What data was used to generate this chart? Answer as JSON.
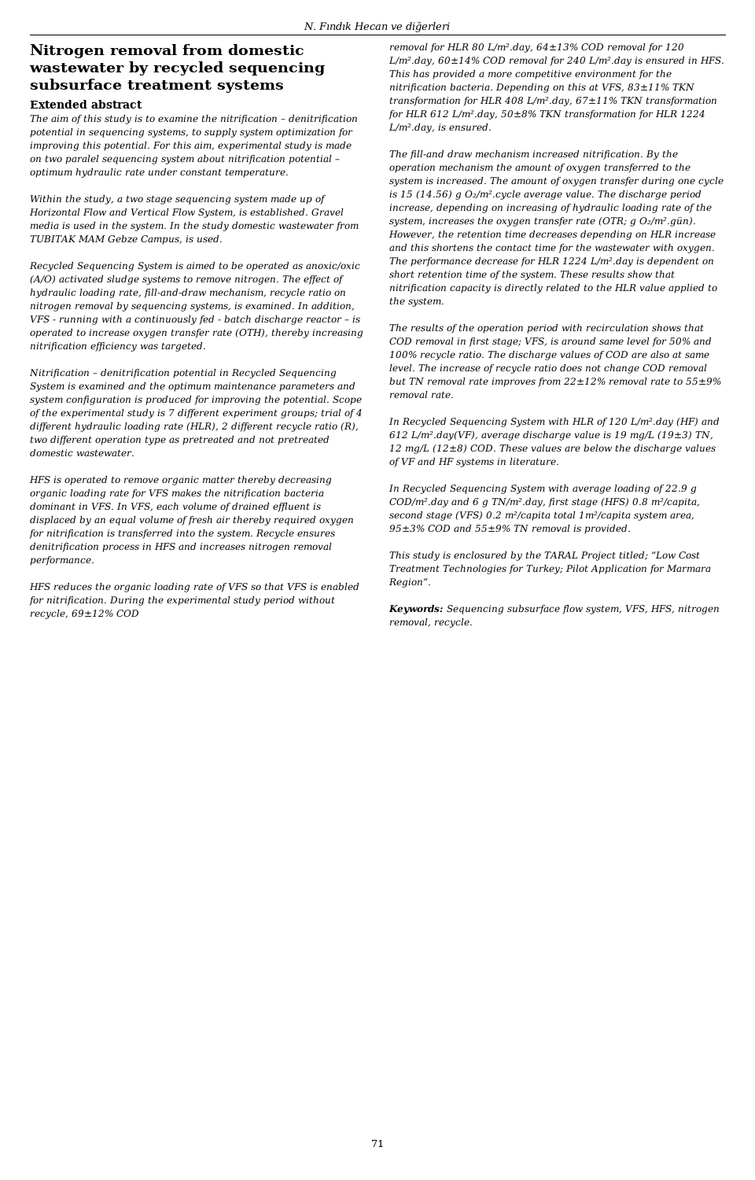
{
  "header": "N. Fındık Hecan ve diğerleri",
  "page_number": "71",
  "background_color": "#ffffff",
  "text_color": "#1a1a1a",
  "title_line1": "Nitrogen removal from domestic",
  "title_line2": "wastewater by recycled sequencing",
  "title_line3": "subsurface treatment systems",
  "section_header": "Extended abstract",
  "left_paragraphs": [
    "The aim of this study is to examine the nitrification – denitrification potential in sequencing systems, to supply system optimization for improving this potential. For this aim, experimental study is made on two paralel sequencing system about nitrification potential – optimum hydraulic rate under constant temperature.",
    "Within the study, a two stage sequencing system made up of Horizontal Flow and Vertical Flow System, is established. Gravel media is used in the system. In the study domestic wastewater from TUBITAK MAM Gebze Campus, is used.",
    "Recycled Sequencing System is aimed to be operated as anoxic/oxic (A/O) activated sludge systems to remove nitrogen. The effect of hydraulic loading rate, fill-and-draw mechanism, recycle ratio on nitrogen removal by sequencing systems, is examined. In addition, VFS - running with a continuously fed - batch discharge reactor – is operated to increase oxygen transfer rate (OTH), thereby increasing nitrification efficiency was targeted.",
    "Nitrification – denitrification potential in Recycled Sequencing System is examined and the optimum maintenance parameters and system configuration is produced for improving the potential. Scope of the experimental study is 7 different experiment groups; trial of 4 different hydraulic loading rate (HLR), 2 different recycle ratio (R), two different operation type as pretreated and not pretreated domestic wastewater.",
    "HFS is operated to remove organic matter thereby decreasing organic loading rate for VFS makes the nitrification bacteria dominant in VFS. In VFS, each volume of drained effluent is displaced by an equal volume of fresh air thereby required oxygen for nitrification is transferred into the system. Recycle ensures denitrification process in HFS and increases nitrogen removal performance.",
    "HFS reduces the organic loading rate of VFS so that VFS is enabled for nitrification. During the experimental study period without recycle, 69±12% COD"
  ],
  "right_paragraphs": [
    "removal for HLR 80 L/m².day, 64±13% COD removal for 120 L/m².day, 60±14% COD removal for 240 L/m².day is ensured in HFS. This has provided a more competitive environment for the nitrification bacteria. Depending on this at VFS, 83±11% TKN transformation for HLR 408 L/m².day, 67±11% TKN transformation for HLR 612 L/m².day, 50±8% TKN transformation for HLR 1224 L/m².day, is ensured.",
    "The fill-and draw mechanism increased nitrification. By the operation mechanism the amount of oxygen transferred to the system is increased. The amount of oxygen transfer during one cycle is 15 (14.56) g O₂/m².cycle average value. The discharge period increase, depending on increasing of hydraulic loading rate of the system, increases the oxygen transfer rate (OTR; g O₂/m².gün). However, the retention time decreases depending on HLR increase and this shortens the contact time for the wastewater with oxygen. The performance decrease for HLR 1224 L/m².day is dependent on short retention time of the system. These results show that nitrification capacity is directly related to the HLR value applied to the system.",
    "The results of the operation period with recirculation shows that COD removal in first stage; VFS, is around same level for 50% and 100% recycle ratio. The discharge values of COD are also at same level. The increase of recycle ratio does not change COD removal but TN removal rate improves from 22±12% removal rate to 55±9% removal rate.",
    "In Recycled Sequencing System with HLR of 120 L/m².day (HF) and 612 L/m².day(VF), average discharge value is 19 mg/L (19±3) TN, 12 mg/L (12±8) COD. These values are below the discharge values of VF and HF systems in literature.",
    "In Recycled Sequencing System with average loading of 22.9 g COD/m².day and 6 g TN/m².day, first stage (HFS) 0.8 m²/capita, second stage (VFS) 0.2 m²/capita total 1m²/capita system area, 95±3% COD and 55±9% TN removal is provided.",
    "This study is enclosured by the TARAL Project titled; “Low Cost Treatment Technologies for Turkey; Pilot Application for Marmara Region”.",
    "Keywords_special: Sequencing subsurface flow system, VFS, HFS, nitrogen removal, recycle."
  ]
}
